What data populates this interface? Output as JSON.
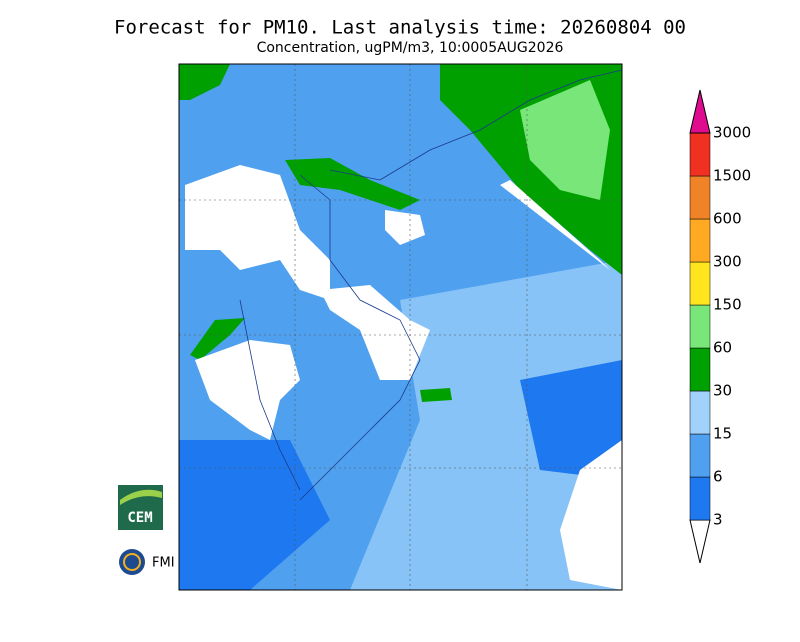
{
  "header": {
    "title": "Forecast for PM10. Last analysis time: 20260804 00",
    "subtitle": "Concentration, ugPM/m3, 10:0005AUG2026"
  },
  "colorbar": {
    "levels": [
      "3",
      "6",
      "15",
      "30",
      "60",
      "150",
      "300",
      "600",
      "1500",
      "3000"
    ],
    "colors": [
      "#ffffff",
      "#1e78f0",
      "#50a0f0",
      "#a0d2fa",
      "#00a000",
      "#78e678",
      "#ffe51e",
      "#ffaa22",
      "#f08228",
      "#f03020",
      "#e00c90"
    ]
  },
  "logos": {
    "cem": "CEM",
    "fmi": "FMI"
  }
}
